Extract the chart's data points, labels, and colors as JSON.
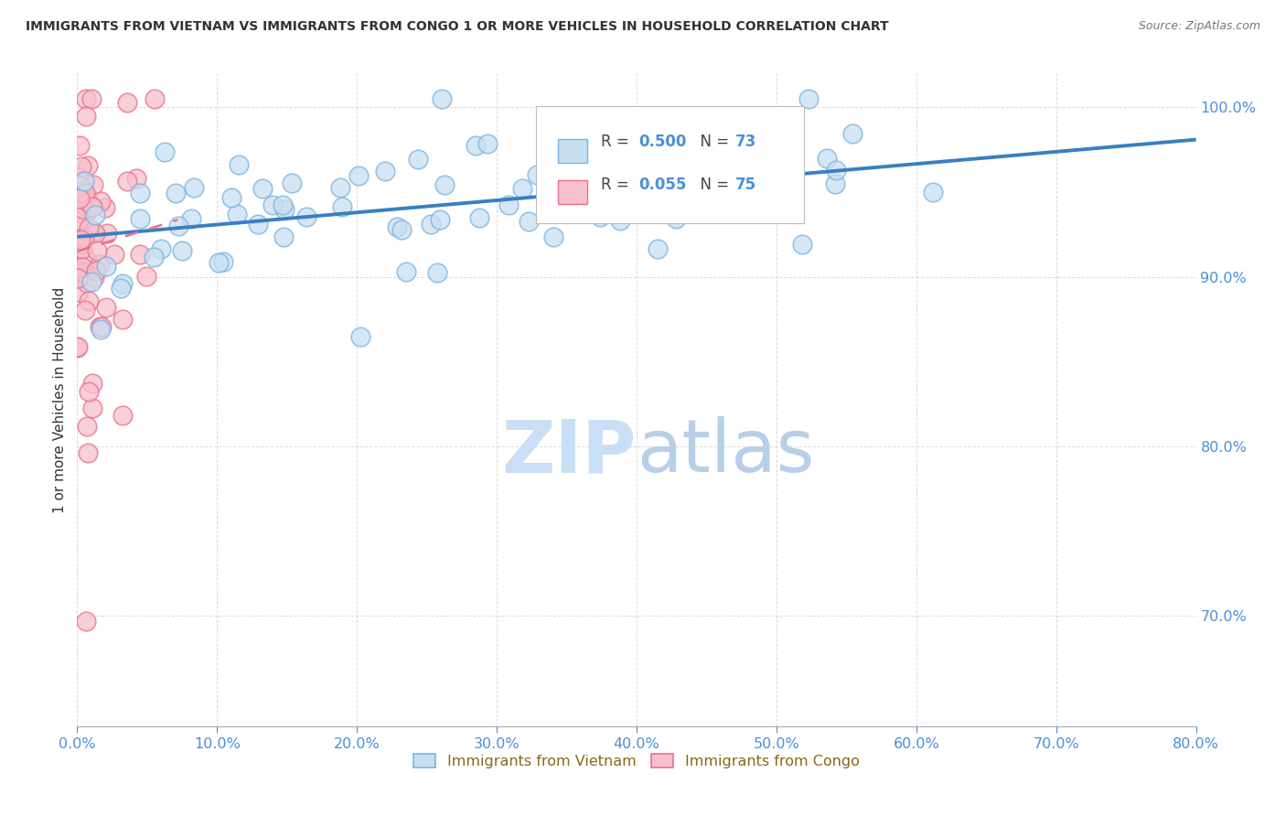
{
  "title": "IMMIGRANTS FROM VIETNAM VS IMMIGRANTS FROM CONGO 1 OR MORE VEHICLES IN HOUSEHOLD CORRELATION CHART",
  "source": "Source: ZipAtlas.com",
  "ylabel": "1 or more Vehicles in Household",
  "y_tick_vals": [
    0.7,
    0.8,
    0.9,
    1.0
  ],
  "x_range": [
    0.0,
    0.8
  ],
  "y_range": [
    0.635,
    1.02
  ],
  "legend_R_vietnam": "0.500",
  "legend_N_vietnam": "73",
  "legend_R_congo": "0.055",
  "legend_N_congo": "75",
  "vietnam_fill": "#c8dff2",
  "vietnam_edge": "#7ab3e0",
  "congo_fill": "#f7c0cc",
  "congo_edge": "#e87090",
  "trend_vietnam_color": "#3a7fc1",
  "trend_congo_color": "#e8748a",
  "label_color": "#4a90d9",
  "text_color": "#333333",
  "watermark_color": "#c8dff5",
  "grid_color": "#cccccc",
  "bottom_legend_color": "#8B6914"
}
